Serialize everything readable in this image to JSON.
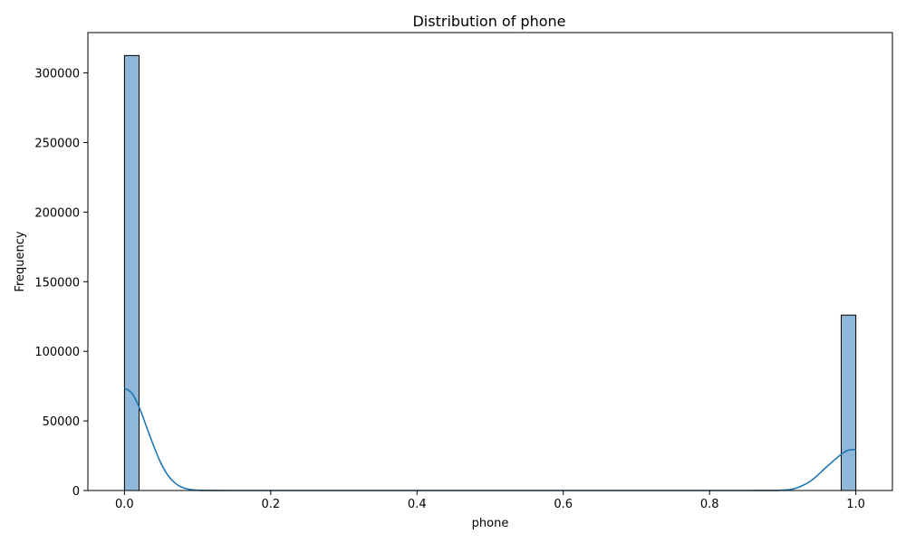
{
  "chart_data": {
    "type": "histogram",
    "title": "Distribution of phone",
    "xlabel": "phone",
    "ylabel": "Frequency",
    "xlim": [
      -0.05,
      1.05
    ],
    "ylim": [
      0,
      329000
    ],
    "grid": false,
    "x_ticks": [
      0.0,
      0.2,
      0.4,
      0.6,
      0.8,
      1.0
    ],
    "x_tick_labels": [
      "0.0",
      "0.2",
      "0.4",
      "0.6",
      "0.8",
      "1.0"
    ],
    "y_ticks": [
      0,
      50000,
      100000,
      150000,
      200000,
      250000,
      300000
    ],
    "y_tick_labels": [
      "0",
      "50000",
      "100000",
      "150000",
      "200000",
      "250000",
      "300000"
    ],
    "bins": [
      {
        "x0": 0.0,
        "x1": 0.02,
        "count": 312500
      },
      {
        "x0": 0.98,
        "x1": 1.0,
        "count": 126000
      }
    ],
    "kde": {
      "x": [
        0.0,
        0.01,
        0.02,
        0.03,
        0.04,
        0.05,
        0.06,
        0.07,
        0.08,
        0.09,
        0.1,
        0.12,
        0.15,
        0.2,
        0.5,
        0.85,
        0.9,
        0.92,
        0.94,
        0.96,
        0.98,
        0.99,
        1.0
      ],
      "y": [
        73500,
        70000,
        60000,
        46000,
        32000,
        19500,
        10500,
        5000,
        2000,
        700,
        200,
        30,
        0,
        0,
        0,
        0,
        300,
        2000,
        7500,
        17000,
        26000,
        29000,
        29500
      ]
    },
    "colors": {
      "bar_fill": "#8fb7d9",
      "bar_edge": "#000000",
      "kde_line": "#1f77b4"
    }
  }
}
